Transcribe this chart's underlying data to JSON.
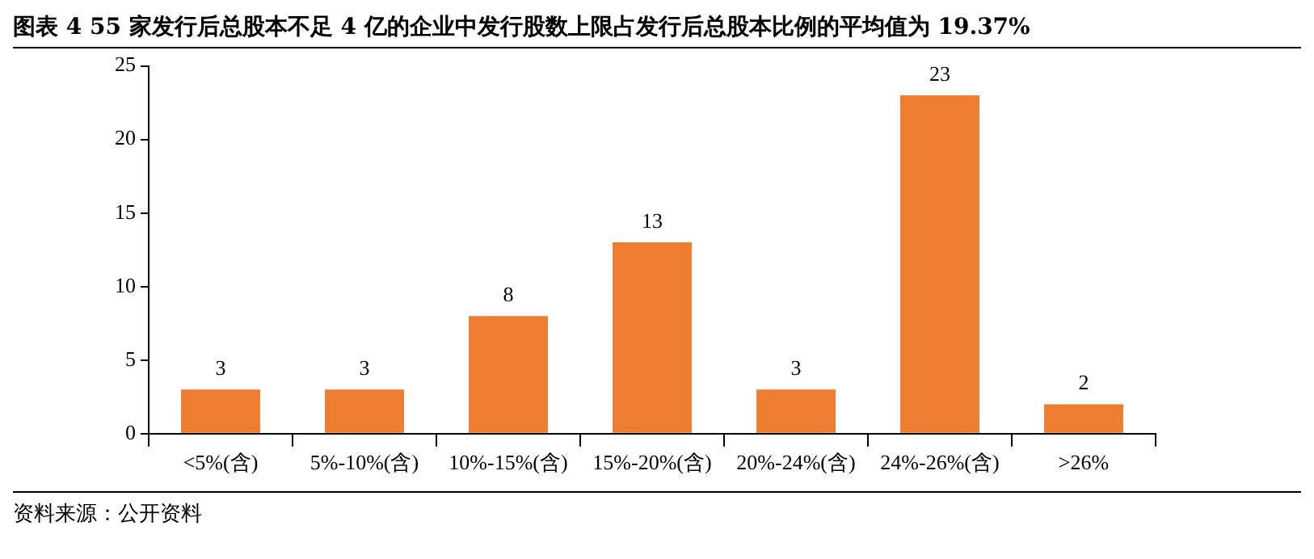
{
  "chart_data": {
    "type": "bar",
    "title": "图表 4 55 家发行后总股本不足 4 亿的企业中发行股数上限占发行后总股本比例的平均值为 19.37%",
    "categories": [
      "<5%(含)",
      "5%-10%(含)",
      "10%-15%(含)",
      "15%-20%(含)",
      "20%-24%(含)",
      "24%-26%(含)",
      ">26%"
    ],
    "values": [
      3,
      3,
      8,
      13,
      3,
      23,
      2
    ],
    "color": "#ed7d31",
    "ylim": [
      0,
      25
    ],
    "yticks": [
      0,
      5,
      10,
      15,
      20,
      25
    ],
    "grid": false,
    "legend": false,
    "data_labels": true,
    "annotations": [
      "资料来源：公开资料"
    ]
  }
}
